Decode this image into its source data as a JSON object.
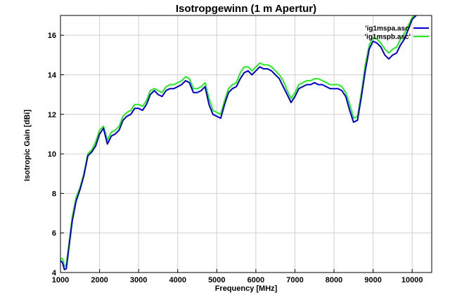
{
  "chart_data": {
    "type": "line",
    "title": "Isotropgewinn (1 m Apertur)",
    "xlabel": "Frequency [MHz]",
    "ylabel": "Isotropic Gain [dBi]",
    "xlim": [
      1000,
      10500
    ],
    "ylim": [
      4,
      17
    ],
    "xticks": [
      1000,
      2000,
      3000,
      4000,
      5000,
      6000,
      7000,
      8000,
      9000,
      10000
    ],
    "yticks": [
      4,
      6,
      8,
      10,
      12,
      14,
      16
    ],
    "grid": true,
    "legend_position": "top-right",
    "series": [
      {
        "name": "'ig1mspa.asc'",
        "color": "#0000cc",
        "x": [
          1000,
          1050,
          1100,
          1150,
          1200,
          1300,
          1400,
          1500,
          1600,
          1700,
          1800,
          1900,
          2000,
          2100,
          2200,
          2300,
          2400,
          2500,
          2600,
          2700,
          2800,
          2900,
          3000,
          3100,
          3200,
          3300,
          3400,
          3500,
          3600,
          3700,
          3800,
          3900,
          4000,
          4100,
          4200,
          4300,
          4400,
          4500,
          4600,
          4700,
          4800,
          4900,
          5000,
          5100,
          5200,
          5300,
          5400,
          5500,
          5600,
          5700,
          5800,
          5900,
          6000,
          6100,
          6200,
          6300,
          6400,
          6500,
          6600,
          6700,
          6800,
          6900,
          7000,
          7100,
          7200,
          7300,
          7400,
          7500,
          7600,
          7700,
          7800,
          7900,
          8000,
          8100,
          8200,
          8300,
          8400,
          8500,
          8600,
          8700,
          8800,
          8900,
          9000,
          9100,
          9200,
          9300,
          9400,
          9500,
          9600,
          9700,
          9800,
          9900,
          10000,
          10100,
          10200
        ],
        "y": [
          4.6,
          4.5,
          4.15,
          4.2,
          5.0,
          6.6,
          7.6,
          8.2,
          8.9,
          9.9,
          10.1,
          10.4,
          11.0,
          11.3,
          10.5,
          10.9,
          11.0,
          11.2,
          11.7,
          11.9,
          12.0,
          12.3,
          12.3,
          12.2,
          12.5,
          13.0,
          13.2,
          13.0,
          12.9,
          13.2,
          13.3,
          13.3,
          13.4,
          13.5,
          13.7,
          13.6,
          13.1,
          13.1,
          13.2,
          13.4,
          12.5,
          12.0,
          11.9,
          11.8,
          12.5,
          13.1,
          13.3,
          13.4,
          13.8,
          14.1,
          14.2,
          14.0,
          14.2,
          14.4,
          14.3,
          14.3,
          14.2,
          14.0,
          13.8,
          13.4,
          13.0,
          12.6,
          12.9,
          13.3,
          13.4,
          13.5,
          13.5,
          13.6,
          13.5,
          13.5,
          13.4,
          13.3,
          13.3,
          13.3,
          13.2,
          12.9,
          12.2,
          11.6,
          11.7,
          12.9,
          14.2,
          15.3,
          15.7,
          15.6,
          15.4,
          15.0,
          14.8,
          15.0,
          15.1,
          15.5,
          15.8,
          16.3,
          16.8,
          17.0,
          17.2
        ]
      },
      {
        "name": "'ig1mspb.asc'",
        "color": "#22ee22",
        "x": [
          1000,
          1050,
          1100,
          1150,
          1200,
          1300,
          1400,
          1500,
          1600,
          1700,
          1800,
          1900,
          2000,
          2100,
          2200,
          2300,
          2400,
          2500,
          2600,
          2700,
          2800,
          2900,
          3000,
          3100,
          3200,
          3300,
          3400,
          3500,
          3600,
          3700,
          3800,
          3900,
          4000,
          4100,
          4200,
          4300,
          4400,
          4500,
          4600,
          4700,
          4800,
          4900,
          5000,
          5100,
          5200,
          5300,
          5400,
          5500,
          5600,
          5700,
          5800,
          5900,
          6000,
          6100,
          6200,
          6300,
          6400,
          6500,
          6600,
          6700,
          6800,
          6900,
          7000,
          7100,
          7200,
          7300,
          7400,
          7500,
          7600,
          7700,
          7800,
          7900,
          8000,
          8100,
          8200,
          8300,
          8400,
          8500,
          8600,
          8700,
          8800,
          8900,
          9000,
          9100,
          9200,
          9300,
          9400,
          9500,
          9600,
          9700,
          9800,
          9900,
          10000,
          10100,
          10200
        ],
        "y": [
          4.7,
          4.7,
          4.3,
          4.4,
          5.2,
          6.8,
          7.8,
          8.3,
          9.0,
          10.0,
          10.2,
          10.6,
          11.2,
          11.4,
          10.7,
          11.1,
          11.2,
          11.4,
          11.9,
          12.1,
          12.2,
          12.5,
          12.5,
          12.4,
          12.7,
          13.2,
          13.3,
          13.2,
          13.1,
          13.4,
          13.5,
          13.5,
          13.6,
          13.7,
          13.9,
          13.8,
          13.3,
          13.3,
          13.4,
          13.6,
          12.8,
          12.2,
          12.1,
          12.0,
          12.7,
          13.3,
          13.5,
          13.6,
          14.1,
          14.4,
          14.4,
          14.2,
          14.4,
          14.6,
          14.5,
          14.5,
          14.4,
          14.2,
          14.0,
          13.7,
          13.2,
          12.8,
          13.1,
          13.5,
          13.6,
          13.7,
          13.7,
          13.8,
          13.8,
          13.7,
          13.6,
          13.5,
          13.5,
          13.5,
          13.4,
          13.1,
          12.5,
          11.8,
          11.9,
          13.1,
          14.5,
          15.5,
          15.9,
          15.8,
          15.6,
          15.3,
          15.1,
          15.3,
          15.4,
          15.8,
          16.1,
          16.5,
          16.9,
          17.1,
          17.2
        ]
      }
    ]
  }
}
